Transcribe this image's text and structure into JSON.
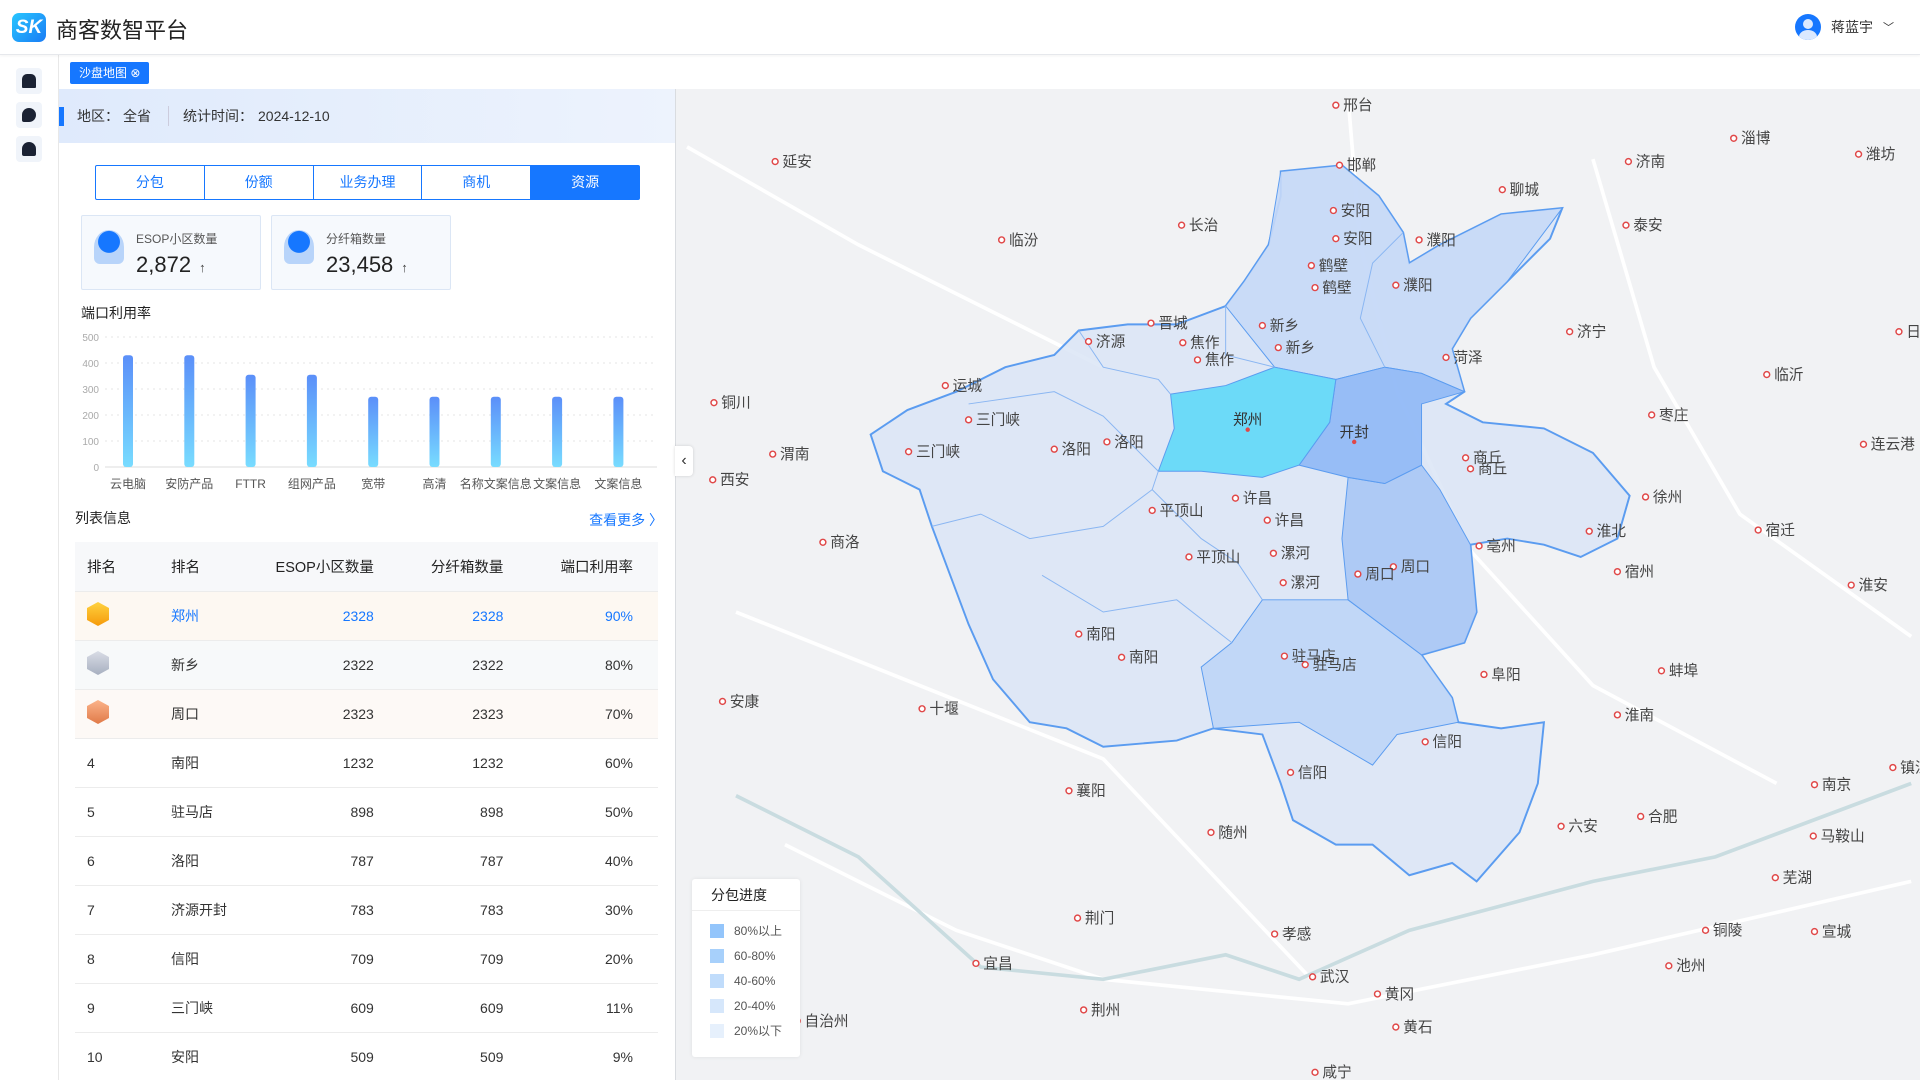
{
  "header": {
    "logo": "SK",
    "title": "商客数智平台",
    "user_name": "蒋蓝宇"
  },
  "sidebar": {
    "items": [
      {
        "icon": "store-icon"
      },
      {
        "icon": "chat-icon"
      },
      {
        "icon": "user-icon"
      }
    ]
  },
  "page_tab": {
    "label": "沙盘地图",
    "close": "⊗"
  },
  "info": {
    "region_label": "地区：",
    "region": "全省",
    "time_label": "统计时间：",
    "time": "2024-12-10"
  },
  "tabs": [
    {
      "label": "分包",
      "active": false
    },
    {
      "label": "份额",
      "active": false
    },
    {
      "label": "业务办理",
      "active": false
    },
    {
      "label": "商机",
      "active": false
    },
    {
      "label": "资源",
      "active": true
    }
  ],
  "cards": [
    {
      "label": "ESOP小区数量",
      "value": "2,872",
      "trend": "↑"
    },
    {
      "label": "分纤箱数量",
      "value": "23,458",
      "trend": "↑"
    }
  ],
  "chart_title": "端口利用率",
  "chart_data": {
    "type": "bar",
    "categories": [
      "云电脑",
      "安防产品",
      "FTTR",
      "组网产品",
      "宽带",
      "高清",
      "名称文案信息",
      "文案信息",
      "文案信息"
    ],
    "values": [
      430,
      430,
      355,
      355,
      270,
      270,
      270,
      270,
      270
    ],
    "ylim": [
      0,
      500
    ],
    "yticks": [
      "0",
      "100",
      "200",
      "300",
      "400",
      "500"
    ],
    "grid": true,
    "colors": {
      "top": "#5b8ff9",
      "bottom": "#78dcff"
    }
  },
  "list": {
    "title": "列表信息",
    "more": "查看更多 〉",
    "columns": [
      "排名",
      "排名",
      "ESOP小区数量",
      "分纤箱数量",
      "端口利用率"
    ],
    "rows": [
      [
        "1",
        "郑州",
        "2328",
        "2328",
        "90%"
      ],
      [
        "2",
        "新乡",
        "2322",
        "2322",
        "80%"
      ],
      [
        "3",
        "周口",
        "2323",
        "2323",
        "70%"
      ],
      [
        "4",
        "南阳",
        "1232",
        "1232",
        "60%"
      ],
      [
        "5",
        "驻马店",
        "898",
        "898",
        "50%"
      ],
      [
        "6",
        "洛阳",
        "787",
        "787",
        "40%"
      ],
      [
        "7",
        "济源开封",
        "783",
        "783",
        "30%"
      ],
      [
        "8",
        "信阳",
        "709",
        "709",
        "20%"
      ],
      [
        "9",
        "三门峡",
        "609",
        "609",
        "11%"
      ],
      [
        "10",
        "安阳",
        "509",
        "509",
        "9%"
      ]
    ]
  },
  "legend": {
    "title": "分包进度",
    "items": [
      {
        "label": "80%以上",
        "color": "#93c5fb"
      },
      {
        "label": "60-80%",
        "color": "#a7d0fb"
      },
      {
        "label": "40-60%",
        "color": "#c0dcfb"
      },
      {
        "label": "20-40%",
        "color": "#d6e7fb"
      },
      {
        "label": "20%以下",
        "color": "#e6f0fc"
      }
    ]
  },
  "map": {
    "colors": {
      "zhengzhou": "#5fd8f8",
      "kaifeng": "#8fb8f6",
      "zhoukou": "#a8c6f5",
      "zhumadian": "#bed5f7",
      "north": "#c6d9f7",
      "base": "#dbe5f6",
      "border": "#5b9cf0"
    },
    "cities": [
      "邢台",
      "延安",
      "济南",
      "淄博",
      "潍坊",
      "邯郸",
      "聊城",
      "临汾",
      "长治",
      "泰安",
      "安阳",
      "安阳",
      "濮阳",
      "鹤壁",
      "鹤壁",
      "濮阳",
      "晋城",
      "新乡",
      "新乡",
      "焦作",
      "焦作",
      "菏泽",
      "济宁",
      "日照",
      "济源",
      "运城",
      "铜川",
      "临沂",
      "三门峡",
      "枣庄",
      "郑州",
      "开封",
      "三门峡",
      "渭南",
      "洛阳",
      "洛阳",
      "商丘",
      "商丘",
      "连云港",
      "西安",
      "徐州",
      "许昌",
      "平顶山",
      "许昌",
      "宿迁",
      "淮北",
      "亳州",
      "商洛",
      "漯河",
      "平顶山",
      "周口",
      "周口",
      "漯河",
      "宿州",
      "淮安",
      "南阳",
      "南阳",
      "驻马店",
      "驻马店",
      "阜阳",
      "蚌埠",
      "安康",
      "十堰",
      "淮南",
      "信阳",
      "信阳",
      "襄阳",
      "镇江",
      "南京",
      "合肥",
      "六安",
      "随州",
      "马鞍山",
      "芜湖",
      "荆门",
      "孝感",
      "铜陵",
      "宣城",
      "宜昌",
      "池州",
      "武汉",
      "黄冈",
      "荆州",
      "黄石",
      "咸宁",
      "自治州"
    ]
  }
}
